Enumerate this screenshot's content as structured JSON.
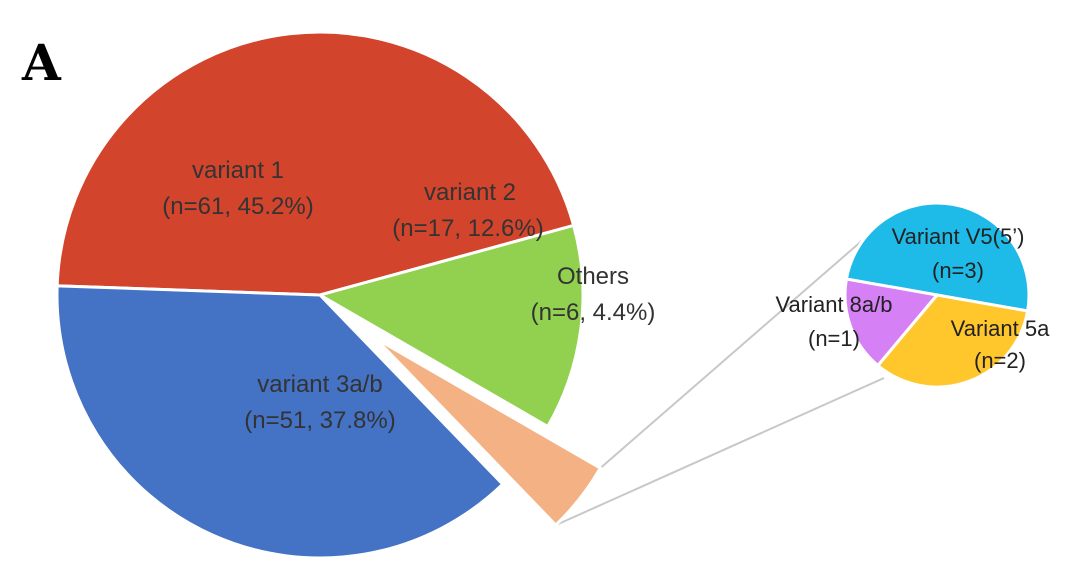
{
  "panel_label": "A",
  "chart_data": [
    {
      "type": "pie",
      "slices": [
        {
          "label": "variant 1",
          "detail": "(n=61, 45.2%)",
          "n": 61,
          "percent": 45.2,
          "color": "#d3442c"
        },
        {
          "label": "variant 2",
          "detail": "(n=17, 12.6%)",
          "n": 17,
          "percent": 12.6,
          "color": "#92d050"
        },
        {
          "label": "Others",
          "detail": "(n=6, 4.4%)",
          "n": 6,
          "percent": 4.4,
          "color": "#f4b183"
        },
        {
          "label": "variant 3a/b",
          "detail": "(n=51, 37.8%)",
          "n": 51,
          "percent": 37.8,
          "color": "#4472c4"
        }
      ]
    },
    {
      "type": "pie",
      "slices": [
        {
          "label": "Variant V5(5’)",
          "detail": "(n=3)",
          "n": 3,
          "color": "#1ebbe8"
        },
        {
          "label": "Variant 5a",
          "detail": "(n=2)",
          "n": 2,
          "color": "#ffc72c"
        },
        {
          "label": "Variant 8a/b",
          "detail": "(n=1)",
          "n": 1,
          "color": "#d580f5"
        }
      ]
    }
  ]
}
